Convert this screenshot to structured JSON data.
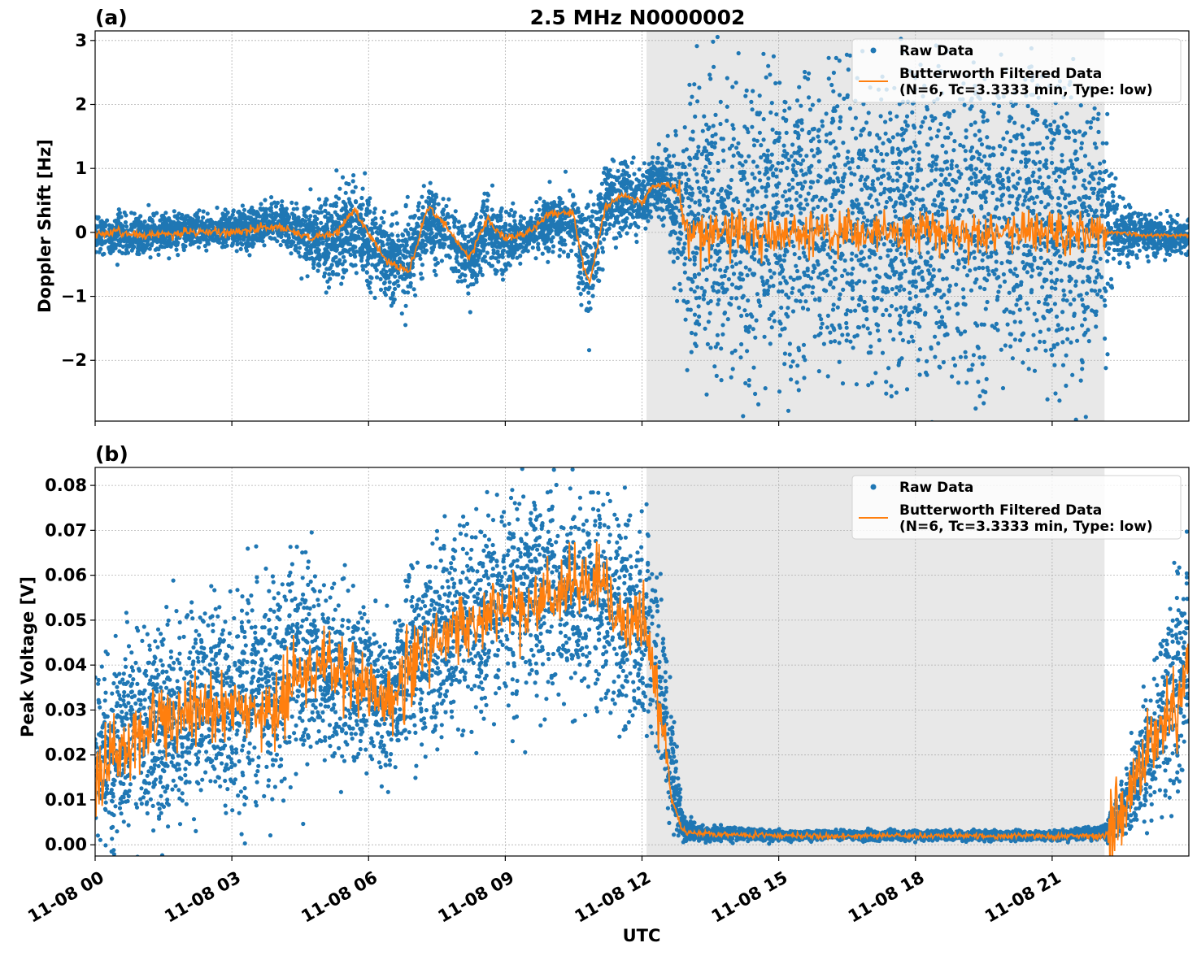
{
  "chart_data": [
    {
      "type": "scatter",
      "panel_label": "(a)",
      "title": "2.5 MHz N0000002",
      "ylabel": "Doppler Shift [Hz]",
      "xlabel": "",
      "xlim_hours": [
        0,
        24
      ],
      "ylim": [
        -2.95,
        3.15
      ],
      "yticks": [
        -2,
        -1,
        0,
        1,
        2,
        3
      ],
      "ytick_labels": [
        "−2",
        "−1",
        "0",
        "1",
        "2",
        "3"
      ],
      "xticks_hours": [
        0,
        3,
        6,
        9,
        12,
        15,
        18,
        21
      ],
      "grid": true,
      "legend_position": "top-right",
      "shaded_region_hours": [
        12.1,
        22.15
      ],
      "shaded_color": "#e8e8e8",
      "series": [
        {
          "name": "Raw Data",
          "kind": "scatter",
          "color": "#1f77b4",
          "envelope_hours": [
            0,
            0.5,
            1,
            2,
            3,
            4,
            4.8,
            5.3,
            5.7,
            6.0,
            6.4,
            6.9,
            7.3,
            7.7,
            8.2,
            8.6,
            9.0,
            9.5,
            10.0,
            10.5,
            10.7,
            10.85,
            11.2,
            11.6,
            12.0,
            12.2,
            12.5,
            12.75,
            13.0,
            13.5,
            15.0,
            18.0,
            21.0,
            22.15,
            22.4,
            23.0,
            24.0
          ],
          "envelope_upper": [
            0.25,
            0.25,
            0.2,
            0.25,
            0.3,
            0.45,
            0.35,
            0.55,
            0.75,
            0.55,
            0.1,
            0.15,
            0.6,
            0.45,
            0.05,
            0.5,
            0.3,
            0.2,
            0.55,
            0.55,
            0.25,
            0.35,
            1.0,
            1.1,
            0.95,
            1.05,
            1.2,
            1.4,
            1.8,
            2.0,
            2.2,
            2.2,
            2.1,
            1.6,
            0.45,
            0.25,
            0.15
          ],
          "envelope_lower": [
            -0.35,
            -0.35,
            -0.3,
            -0.2,
            -0.2,
            -0.15,
            -0.5,
            -0.8,
            -0.4,
            -0.75,
            -1.05,
            -1.0,
            -0.25,
            -0.5,
            -0.8,
            -0.4,
            -0.55,
            -0.25,
            -0.2,
            -0.2,
            -1.2,
            -1.45,
            -0.1,
            0.1,
            0.05,
            0.3,
            0.3,
            -0.6,
            -1.5,
            -1.8,
            -1.9,
            -2.0,
            -1.9,
            -1.4,
            -0.4,
            -0.35,
            -0.3
          ]
        },
        {
          "name": "Butterworth Filtered Data\n(N=6, Tc=3.3333 min, Type: low)",
          "legend_lines": [
            "Butterworth Filtered Data",
            "(N=6, Tc=3.3333 min, Type: low)"
          ],
          "kind": "line",
          "color": "#ff7f0e",
          "x_hours": [
            0,
            0.5,
            1,
            2,
            3,
            4,
            4.8,
            5.3,
            5.7,
            6.0,
            6.4,
            6.9,
            7.3,
            7.7,
            8.2,
            8.6,
            9.0,
            9.5,
            10.0,
            10.5,
            10.7,
            10.85,
            11.2,
            11.6,
            12.0,
            12.2,
            12.5,
            12.75,
            13.0,
            13.5,
            15.0,
            18.0,
            21.0,
            22.15,
            22.4,
            23.0,
            24.0
          ],
          "y": [
            -0.05,
            0.0,
            -0.05,
            0.0,
            0.0,
            0.1,
            -0.1,
            0.0,
            0.35,
            0.0,
            -0.45,
            -0.6,
            0.4,
            0.1,
            -0.4,
            0.2,
            -0.1,
            0.0,
            0.3,
            0.3,
            -0.5,
            -0.8,
            0.4,
            0.6,
            0.45,
            0.7,
            0.75,
            0.7,
            0.0,
            0.0,
            0.0,
            0.0,
            0.0,
            0.0,
            0.0,
            -0.05,
            -0.05
          ],
          "noise_amplitude_hours": [
            [
              0,
              12.8,
              0.04
            ],
            [
              12.8,
              22.2,
              0.22
            ],
            [
              22.2,
              24,
              0.02
            ]
          ]
        }
      ]
    },
    {
      "type": "scatter",
      "panel_label": "(b)",
      "title": "",
      "ylabel": "Peak Voltage [V]",
      "xlabel": "UTC",
      "xlim_hours": [
        0,
        24
      ],
      "ylim": [
        -0.0025,
        0.084
      ],
      "yticks": [
        0.0,
        0.01,
        0.02,
        0.03,
        0.04,
        0.05,
        0.06,
        0.07,
        0.08
      ],
      "ytick_labels": [
        "0.00",
        "0.01",
        "0.02",
        "0.03",
        "0.04",
        "0.05",
        "0.06",
        "0.07",
        "0.08"
      ],
      "xticks_hours": [
        0,
        3,
        6,
        9,
        12,
        15,
        18,
        21
      ],
      "xtick_labels": [
        "11-08 00",
        "11-08 03",
        "11-08 06",
        "11-08 09",
        "11-08 12",
        "11-08 15",
        "11-08 18",
        "11-08 21"
      ],
      "grid": true,
      "legend_position": "top-right",
      "shaded_region_hours": [
        12.1,
        22.15
      ],
      "shaded_color": "#e8e8e8",
      "series": [
        {
          "name": "Raw Data",
          "kind": "scatter",
          "color": "#1f77b4",
          "envelope_hours": [
            0,
            1,
            2,
            3,
            4,
            4.5,
            5,
            6,
            6.5,
            7,
            8,
            9,
            10,
            11,
            11.7,
            12.1,
            12.4,
            12.65,
            12.9,
            13.2,
            15,
            18,
            21,
            22.15,
            22.6,
            23.2,
            23.7,
            24.0
          ],
          "envelope_upper": [
            0.035,
            0.045,
            0.05,
            0.055,
            0.055,
            0.065,
            0.055,
            0.05,
            0.045,
            0.06,
            0.068,
            0.076,
            0.076,
            0.074,
            0.07,
            0.066,
            0.055,
            0.03,
            0.006,
            0.004,
            0.003,
            0.003,
            0.003,
            0.004,
            0.015,
            0.035,
            0.055,
            0.062
          ],
          "envelope_lower": [
            0.005,
            0.008,
            0.01,
            0.012,
            0.015,
            0.02,
            0.022,
            0.02,
            0.018,
            0.025,
            0.03,
            0.035,
            0.038,
            0.036,
            0.03,
            0.028,
            0.02,
            0.005,
            0.001,
            0.0012,
            0.0012,
            0.0012,
            0.0012,
            0.0012,
            0.004,
            0.01,
            0.015,
            0.02
          ]
        },
        {
          "name": "Butterworth Filtered Data\n(N=6, Tc=3.3333 min, Type: low)",
          "legend_lines": [
            "Butterworth Filtered Data",
            "(N=6, Tc=3.3333 min, Type: low)"
          ],
          "kind": "line",
          "color": "#ff7f0e",
          "x_hours": [
            0,
            1,
            2,
            3,
            4,
            4.5,
            5,
            6,
            6.5,
            7,
            8,
            9,
            10,
            11,
            11.7,
            12.1,
            12.4,
            12.65,
            12.9,
            13.2,
            15,
            18,
            21,
            22.15,
            22.6,
            23.2,
            23.7,
            24.0
          ],
          "y": [
            0.015,
            0.025,
            0.03,
            0.03,
            0.03,
            0.038,
            0.04,
            0.035,
            0.032,
            0.042,
            0.048,
            0.052,
            0.055,
            0.058,
            0.05,
            0.048,
            0.03,
            0.01,
            0.003,
            0.0025,
            0.002,
            0.002,
            0.002,
            0.002,
            0.01,
            0.022,
            0.032,
            0.038
          ],
          "noise_amplitude_hours": [
            [
              0,
              12.6,
              0.005
            ],
            [
              12.6,
              22.2,
              0.0004
            ],
            [
              22.2,
              24,
              0.006
            ]
          ]
        }
      ]
    }
  ]
}
